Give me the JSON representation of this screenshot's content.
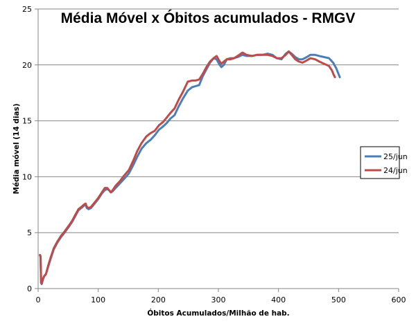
{
  "chart_data": {
    "type": "line",
    "title": "Média Móvel x Óbitos acumulados - RMGV",
    "xlabel": "Óbitos Acumulados/Milhão  de hab.",
    "ylabel": "Média móvel (14 dias)",
    "xlim": [
      0,
      600
    ],
    "ylim": [
      0,
      25
    ],
    "x_ticks": [
      0,
      100,
      200,
      300,
      400,
      500,
      600
    ],
    "y_ticks": [
      0,
      5,
      10,
      15,
      20,
      25
    ],
    "grid": "horizontal",
    "legend_position": "right",
    "series": [
      {
        "name": "25/jun",
        "color": "#4a7ebb",
        "points": [
          [
            3,
            3
          ],
          [
            4,
            2.9
          ],
          [
            5,
            0.5
          ],
          [
            6,
            0.4
          ],
          [
            8,
            0.8
          ],
          [
            10,
            1.1
          ],
          [
            13,
            1.3
          ],
          [
            17,
            2
          ],
          [
            21,
            2.7
          ],
          [
            26,
            3.5
          ],
          [
            32,
            4.1
          ],
          [
            38,
            4.6
          ],
          [
            44,
            5
          ],
          [
            48,
            5.3
          ],
          [
            52,
            5.6
          ],
          [
            57,
            6
          ],
          [
            62,
            6.5
          ],
          [
            67,
            7
          ],
          [
            72,
            7.2
          ],
          [
            76,
            7.4
          ],
          [
            79,
            7.5
          ],
          [
            81,
            7.2
          ],
          [
            84,
            7.1
          ],
          [
            88,
            7.2
          ],
          [
            94,
            7.6
          ],
          [
            100,
            8
          ],
          [
            106,
            8.5
          ],
          [
            111,
            8.8
          ],
          [
            115,
            8.9
          ],
          [
            118,
            8.8
          ],
          [
            121,
            8.6
          ],
          [
            124,
            8.7
          ],
          [
            129,
            9
          ],
          [
            136,
            9.4
          ],
          [
            143,
            9.8
          ],
          [
            151,
            10.3
          ],
          [
            158,
            11
          ],
          [
            165,
            11.8
          ],
          [
            172,
            12.5
          ],
          [
            180,
            13
          ],
          [
            187,
            13.3
          ],
          [
            194,
            13.7
          ],
          [
            201,
            14.2
          ],
          [
            208,
            14.5
          ],
          [
            214,
            14.8
          ],
          [
            220,
            15.2
          ],
          [
            227,
            15.5
          ],
          [
            234,
            16.3
          ],
          [
            241,
            17
          ],
          [
            249,
            17.7
          ],
          [
            256,
            18
          ],
          [
            262,
            18.1
          ],
          [
            268,
            18.2
          ],
          [
            274,
            19
          ],
          [
            280,
            19.6
          ],
          [
            286,
            20.2
          ],
          [
            292,
            20.6
          ],
          [
            297,
            20.5
          ],
          [
            301,
            20.1
          ],
          [
            305,
            19.8
          ],
          [
            309,
            20
          ],
          [
            314,
            20.5
          ],
          [
            320,
            20.6
          ],
          [
            326,
            20.6
          ],
          [
            332,
            20.7
          ],
          [
            340,
            20.9
          ],
          [
            347,
            20.8
          ],
          [
            356,
            20.8
          ],
          [
            364,
            20.9
          ],
          [
            373,
            20.9
          ],
          [
            382,
            21
          ],
          [
            390,
            20.9
          ],
          [
            397,
            20.6
          ],
          [
            405,
            20.5
          ],
          [
            412,
            21
          ],
          [
            417,
            21.2
          ],
          [
            422,
            21
          ],
          [
            428,
            20.7
          ],
          [
            434,
            20.5
          ],
          [
            440,
            20.5
          ],
          [
            447,
            20.7
          ],
          [
            453,
            20.9
          ],
          [
            461,
            20.9
          ],
          [
            468,
            20.8
          ],
          [
            476,
            20.7
          ],
          [
            484,
            20.6
          ],
          [
            491,
            20.2
          ],
          [
            496,
            19.7
          ],
          [
            499,
            19.3
          ],
          [
            502,
            18.9
          ]
        ]
      },
      {
        "name": "24/jun",
        "color": "#be4b48",
        "points": [
          [
            3,
            3
          ],
          [
            4,
            2.8
          ],
          [
            5,
            0.5
          ],
          [
            6,
            0.5
          ],
          [
            8,
            0.9
          ],
          [
            10,
            1.1
          ],
          [
            13,
            1.3
          ],
          [
            17,
            2.1
          ],
          [
            21,
            2.8
          ],
          [
            26,
            3.6
          ],
          [
            32,
            4.2
          ],
          [
            38,
            4.7
          ],
          [
            44,
            5.1
          ],
          [
            48,
            5.4
          ],
          [
            52,
            5.7
          ],
          [
            57,
            6.1
          ],
          [
            62,
            6.6
          ],
          [
            67,
            7.1
          ],
          [
            72,
            7.3
          ],
          [
            76,
            7.5
          ],
          [
            79,
            7.6
          ],
          [
            81,
            7.3
          ],
          [
            84,
            7.2
          ],
          [
            88,
            7.3
          ],
          [
            94,
            7.7
          ],
          [
            100,
            8.1
          ],
          [
            106,
            8.6
          ],
          [
            111,
            9
          ],
          [
            115,
            9
          ],
          [
            118,
            8.8
          ],
          [
            121,
            8.6
          ],
          [
            124,
            8.8
          ],
          [
            129,
            9.2
          ],
          [
            136,
            9.6
          ],
          [
            143,
            10.1
          ],
          [
            151,
            10.6
          ],
          [
            158,
            11.4
          ],
          [
            165,
            12.3
          ],
          [
            172,
            13
          ],
          [
            180,
            13.6
          ],
          [
            187,
            13.9
          ],
          [
            194,
            14.1
          ],
          [
            201,
            14.6
          ],
          [
            208,
            14.9
          ],
          [
            214,
            15.3
          ],
          [
            220,
            15.7
          ],
          [
            227,
            16.1
          ],
          [
            234,
            16.9
          ],
          [
            241,
            17.6
          ],
          [
            249,
            18.5
          ],
          [
            256,
            18.6
          ],
          [
            262,
            18.6
          ],
          [
            268,
            18.7
          ],
          [
            274,
            19.2
          ],
          [
            280,
            19.8
          ],
          [
            286,
            20.3
          ],
          [
            292,
            20.6
          ],
          [
            297,
            20.8
          ],
          [
            301,
            20.4
          ],
          [
            305,
            20.1
          ],
          [
            309,
            20.3
          ],
          [
            314,
            20.5
          ],
          [
            320,
            20.5
          ],
          [
            326,
            20.6
          ],
          [
            332,
            20.8
          ],
          [
            340,
            21.1
          ],
          [
            347,
            20.9
          ],
          [
            356,
            20.8
          ],
          [
            364,
            20.9
          ],
          [
            373,
            20.9
          ],
          [
            382,
            20.9
          ],
          [
            390,
            20.8
          ],
          [
            397,
            20.6
          ],
          [
            405,
            20.6
          ],
          [
            412,
            20.9
          ],
          [
            417,
            21.2
          ],
          [
            422,
            20.9
          ],
          [
            428,
            20.5
          ],
          [
            434,
            20.3
          ],
          [
            440,
            20.2
          ],
          [
            447,
            20.4
          ],
          [
            453,
            20.6
          ],
          [
            461,
            20.5
          ],
          [
            468,
            20.3
          ],
          [
            476,
            20.1
          ],
          [
            484,
            19.9
          ],
          [
            489,
            19.5
          ],
          [
            492,
            19.1
          ],
          [
            494,
            18.9
          ]
        ]
      }
    ]
  }
}
